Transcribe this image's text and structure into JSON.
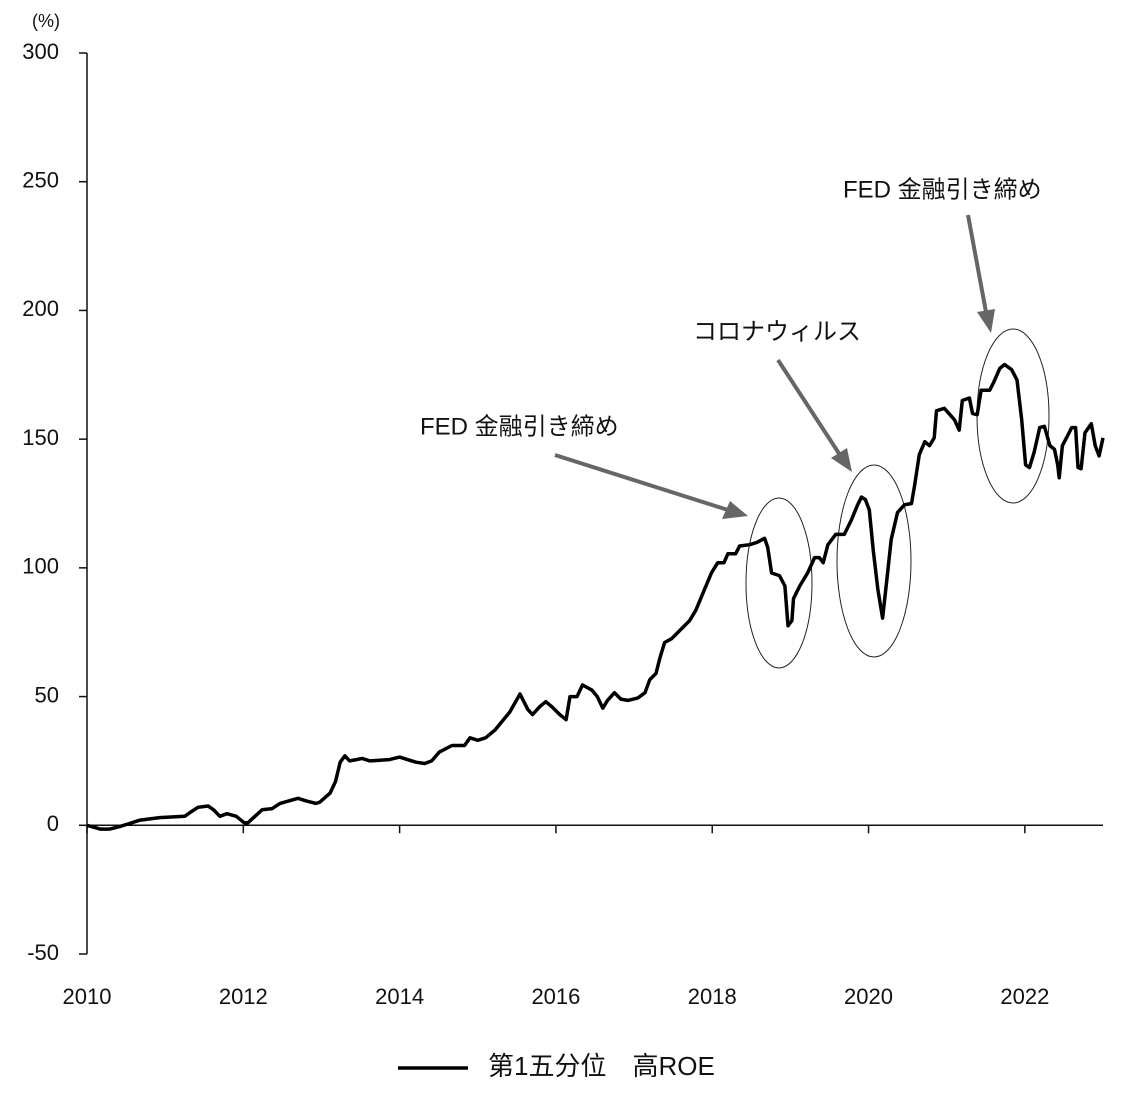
{
  "chart_data": {
    "type": "line",
    "y_label": "(%)",
    "xlim": [
      2010,
      2023
    ],
    "xticks": [
      2010,
      2012,
      2014,
      2016,
      2018,
      2020,
      2022
    ],
    "ylim": [
      -50,
      300
    ],
    "yticks": [
      -50,
      0,
      50,
      100,
      150,
      200,
      250,
      300
    ],
    "grid": false,
    "legend": "bottom",
    "annotations": [
      {
        "text": "FED 金融引き締め"
      },
      {
        "text": "コロナウィルス"
      },
      {
        "text": "FED 金融引き締め"
      }
    ],
    "x": [
      2010.0,
      2010.17,
      2010.29,
      2010.42,
      2010.68,
      2010.93,
      2011.25,
      2011.32,
      2011.42,
      2011.55,
      2011.62,
      2011.7,
      2011.79,
      2011.91,
      2012.01,
      2012.06,
      2012.24,
      2012.37,
      2012.47,
      2012.7,
      2012.8,
      2012.93,
      2012.98,
      2013.11,
      2013.18,
      2013.24,
      2013.3,
      2013.36,
      2013.45,
      2013.52,
      2013.62,
      2013.87,
      2014.0,
      2014.1,
      2014.21,
      2014.32,
      2014.41,
      2014.51,
      2014.67,
      2014.83,
      2014.9,
      2015.0,
      2015.1,
      2015.22,
      2015.41,
      2015.54,
      2015.64,
      2015.7,
      2015.79,
      2015.87,
      2015.95,
      2016.05,
      2016.13,
      2016.18,
      2016.27,
      2016.34,
      2016.46,
      2016.53,
      2016.6,
      2016.66,
      2016.75,
      2016.83,
      2016.92,
      2017.05,
      2017.14,
      2017.2,
      2017.28,
      2017.33,
      2017.39,
      2017.48,
      2017.58,
      2017.71,
      2017.79,
      2017.9,
      2017.99,
      2018.07,
      2018.15,
      2018.2,
      2018.3,
      2018.35,
      2018.48,
      2018.58,
      2018.67,
      2018.71,
      2018.76,
      2018.86,
      2018.93,
      2018.97,
      2019.02,
      2019.04,
      2019.12,
      2019.22,
      2019.31,
      2019.37,
      2019.42,
      2019.48,
      2019.58,
      2019.69,
      2019.78,
      2019.86,
      2019.91,
      2019.96,
      2020.01,
      2020.06,
      2020.12,
      2020.18,
      2020.24,
      2020.29,
      2020.37,
      2020.46,
      2020.55,
      2020.59,
      2020.65,
      2020.72,
      2020.78,
      2020.84,
      2020.87,
      2020.97,
      2021.1,
      2021.16,
      2021.2,
      2021.29,
      2021.33,
      2021.39,
      2021.44,
      2021.55,
      2021.6,
      2021.68,
      2021.74,
      2021.83,
      2021.9,
      2021.96,
      2022.01,
      2022.06,
      2022.12,
      2022.19,
      2022.25,
      2022.32,
      2022.38,
      2022.42,
      2022.44,
      2022.48,
      2022.55,
      2022.6,
      2022.65,
      2022.68,
      2022.72,
      2022.77,
      2022.85,
      2022.9,
      2022.95,
      2023.0
    ],
    "series": [
      {
        "name": "第1五分位　高ROE",
        "color": "#000000",
        "values": [
          0,
          -1.5,
          -1.5,
          -0.5,
          2,
          3,
          3.5,
          5,
          7,
          7.5,
          6,
          3.5,
          4.5,
          3.5,
          1,
          1,
          6,
          6.5,
          8.5,
          10.5,
          9.5,
          8.5,
          9,
          12.5,
          17,
          24.5,
          27,
          25,
          25.5,
          26,
          25,
          25.5,
          26.5,
          25.5,
          24.5,
          24,
          25,
          28.5,
          31,
          31,
          34,
          33,
          34,
          37,
          44,
          51,
          45,
          43,
          46,
          48,
          46,
          43,
          41,
          50,
          50,
          54.5,
          52.5,
          50,
          45.5,
          48.5,
          51.5,
          49,
          48.5,
          49.5,
          51.5,
          56.5,
          59,
          65,
          71,
          72.5,
          75.5,
          79.5,
          83.5,
          91.5,
          98,
          102,
          102,
          105.5,
          105.5,
          108.5,
          109,
          110,
          111.5,
          108,
          98,
          97,
          93,
          77.5,
          79.5,
          88,
          93,
          98,
          104,
          104,
          102,
          109,
          113,
          113,
          118.5,
          124.5,
          127.5,
          126.5,
          122.5,
          107,
          91.5,
          80.5,
          97,
          111,
          121.5,
          124.5,
          125,
          132,
          144,
          149,
          147.5,
          150.5,
          161,
          162,
          157.5,
          153.5,
          165,
          166,
          160,
          159.5,
          169,
          169,
          172,
          177.5,
          179,
          177,
          173,
          157.5,
          140,
          139,
          145,
          154.5,
          155,
          147.5,
          146,
          140,
          135,
          147.5,
          151.5,
          154.5,
          154.5,
          139,
          138.5,
          152.5,
          156,
          147.5,
          143.5,
          150.5
        ]
      }
    ]
  }
}
